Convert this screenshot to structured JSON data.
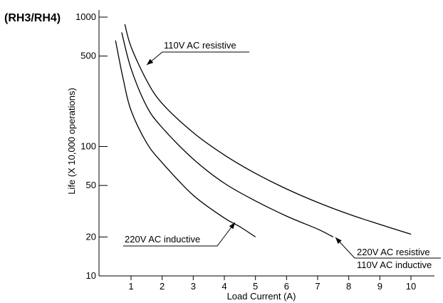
{
  "chart_data": {
    "type": "line",
    "heading": "(RH3/RH4)",
    "xlabel": "Load Current (A)",
    "ylabel": "Life (X 10,000 operations)",
    "x_ticks": [
      1,
      2,
      3,
      4,
      5,
      6,
      7,
      8,
      9,
      10
    ],
    "y_ticks": [
      10,
      20,
      50,
      100,
      500,
      1000
    ],
    "xlim": [
      0.3,
      10.6
    ],
    "ylim": [
      10,
      1150
    ],
    "y_scale": "log",
    "grid": false,
    "series": [
      {
        "name": "110V AC resistive",
        "x": [
          0.8,
          1,
          1.5,
          2,
          3,
          4,
          5,
          6,
          7,
          8,
          9,
          10
        ],
        "y": [
          880,
          590,
          325,
          215,
          128,
          86,
          62,
          47,
          37,
          30,
          25,
          21
        ]
      },
      {
        "name": "220V AC resistive / 110V AC inductive",
        "x": [
          0.7,
          1,
          1.5,
          2,
          3,
          4,
          5,
          6,
          7,
          7.5
        ],
        "y": [
          760,
          400,
          205,
          140,
          80,
          52,
          38,
          29,
          23,
          20
        ]
      },
      {
        "name": "220V AC inductive",
        "x": [
          0.5,
          0.75,
          1,
          1.5,
          2,
          3,
          4,
          4.5,
          5
        ],
        "y": [
          660,
          330,
          190,
          107,
          75,
          42,
          28,
          24,
          20
        ]
      }
    ],
    "annotations": [
      {
        "text": "110V AC resistive",
        "series": 0
      },
      {
        "text": "220V AC inductive",
        "series": 2
      },
      {
        "text": "220V AC resistive",
        "series": 1
      },
      {
        "text": "110V AC inductive",
        "series": 1
      }
    ]
  }
}
